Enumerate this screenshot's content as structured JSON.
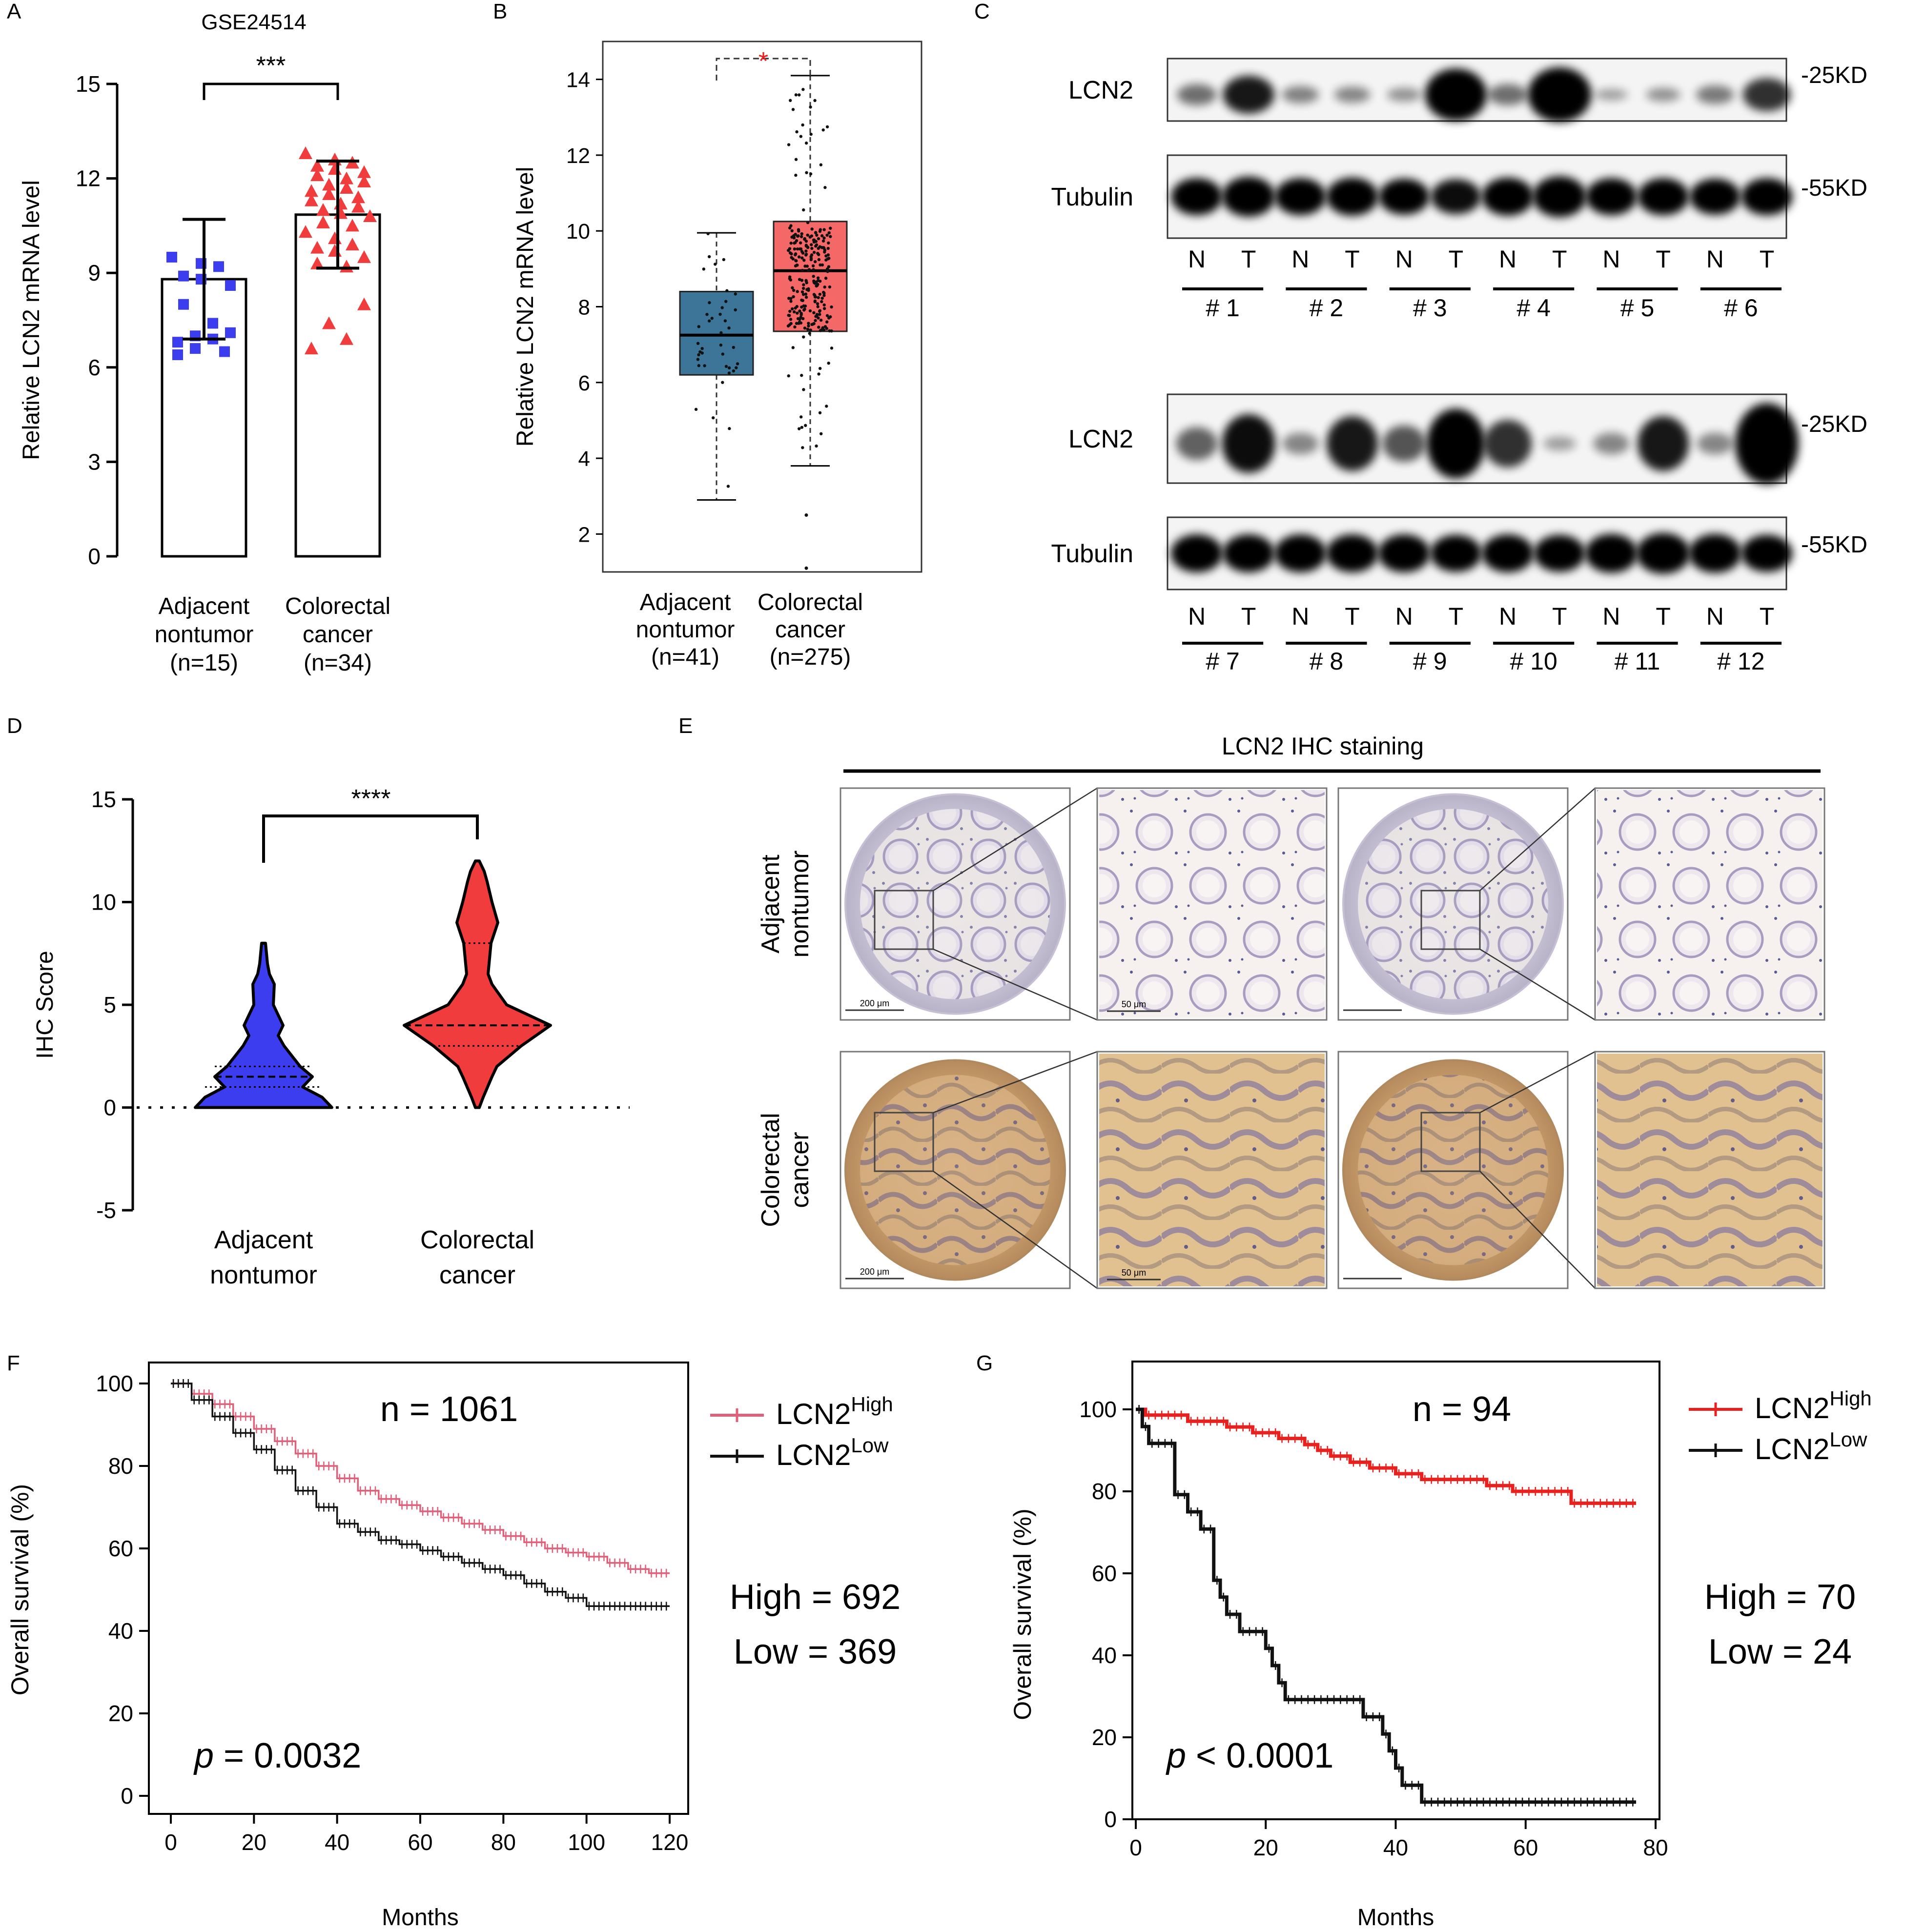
{
  "colors": {
    "blue": "#3d3df0",
    "red": "#f03c3c",
    "box_blue": "#3c7598",
    "box_red": "#f56868",
    "black": "#000000",
    "pink": "#e0607a",
    "km_red": "#e8201e"
  },
  "panel_labels": [
    "A",
    "B",
    "C",
    "D",
    "E",
    "F",
    "G"
  ],
  "chart_data": [
    {
      "id": "A",
      "type": "bar",
      "title": "GSE24514",
      "ylabel": "Relative LCN2 mRNA level",
      "ylim": [
        0,
        15
      ],
      "yticks": [
        "0",
        "3",
        "6",
        "9",
        "12",
        "15"
      ],
      "categories": [
        "Adjacent nontumor (n=15)",
        "Colorectal cancer (n=34)"
      ],
      "category_lines": [
        [
          "Adjacent",
          "nontumor",
          "(n=15)"
        ],
        [
          "Colorectal",
          "cancer",
          "(n=34)"
        ]
      ],
      "values": [
        8.8,
        10.85
      ],
      "sd": [
        1.9,
        1.7
      ],
      "significance": "***",
      "points": [
        [
          9.5,
          9.3,
          9.2,
          8.9,
          8.8,
          8.6,
          8.0,
          7.4,
          7.1,
          7.0,
          6.9,
          6.8,
          6.6,
          6.5,
          6.4
        ],
        [
          12.8,
          12.6,
          12.5,
          12.4,
          12.3,
          12.2,
          12.1,
          12.0,
          11.9,
          11.8,
          11.7,
          11.6,
          11.5,
          11.4,
          11.3,
          11.2,
          11.1,
          11.0,
          10.9,
          10.8,
          10.6,
          10.5,
          10.3,
          10.1,
          9.9,
          9.8,
          9.7,
          9.5,
          9.3,
          9.2,
          8.0,
          7.4,
          6.9,
          6.6
        ]
      ]
    },
    {
      "id": "B",
      "type": "box",
      "ylabel": "Relative LCN2 mRNA level",
      "ylim": [
        1,
        15
      ],
      "yticks": [
        "2",
        "4",
        "6",
        "8",
        "10",
        "12",
        "14"
      ],
      "categories": [
        "Adjacent nontumor (n=41)",
        "Colorectal cancer (n=275)"
      ],
      "category_lines": [
        [
          "Adjacent",
          "nontumor",
          "(n=41)"
        ],
        [
          "Colorectal",
          "cancer",
          "(n=275)"
        ]
      ],
      "boxes": [
        {
          "min": 2.9,
          "q1": 6.2,
          "median": 7.25,
          "q3": 8.4,
          "max": 9.95,
          "n": 41
        },
        {
          "min": 3.8,
          "q1": 7.35,
          "median": 8.95,
          "q3": 10.25,
          "max": 14.1,
          "n": 275
        }
      ],
      "outliers": [
        [],
        [
          2.5,
          1.1
        ]
      ],
      "significance": "*"
    },
    {
      "id": "D",
      "type": "violin",
      "ylabel": "IHC Score",
      "ylim": [
        -5,
        15
      ],
      "yticks": [
        "-5",
        "0",
        "5",
        "10",
        "15"
      ],
      "categories": [
        "Adjacent nontumor",
        "Colorectal cancer"
      ],
      "category_lines": [
        [
          "Adjacent",
          "nontumor"
        ],
        [
          "Colorectal",
          "cancer"
        ]
      ],
      "quartiles": [
        [
          1,
          1.5,
          2
        ],
        [
          3,
          4,
          8
        ]
      ],
      "range": [
        [
          0,
          8
        ],
        [
          0,
          12
        ]
      ],
      "significance": "****"
    },
    {
      "id": "F",
      "type": "line",
      "subtype": "kaplan-meier",
      "xlabel": "Months",
      "ylabel": "Overall survival (%)",
      "xlim": [
        0,
        120
      ],
      "ylim": [
        0,
        100
      ],
      "xticks": [
        "0",
        "20",
        "40",
        "60",
        "80",
        "100",
        "120"
      ],
      "yticks": [
        "0",
        "20",
        "40",
        "60",
        "80",
        "100"
      ],
      "n_text": "n = 1061",
      "high_text": "High = 692",
      "low_text": "Low = 369",
      "p_label": "p",
      "p_value": "= 0.0032",
      "series": [
        {
          "name": "LCN2",
          "sup": "High",
          "x": [
            0,
            5,
            10,
            15,
            20,
            25,
            30,
            35,
            40,
            45,
            50,
            55,
            60,
            65,
            70,
            75,
            80,
            85,
            90,
            95,
            100,
            105,
            110,
            115,
            120
          ],
          "y": [
            100,
            97.5,
            95,
            92,
            89,
            86,
            83,
            80,
            77,
            74,
            72,
            70.5,
            69,
            67.5,
            66,
            64.5,
            63,
            61.5,
            60,
            59,
            58,
            56.5,
            55,
            54,
            54
          ]
        },
        {
          "name": "LCN2",
          "sup": "Low",
          "x": [
            0,
            5,
            10,
            15,
            20,
            25,
            30,
            35,
            40,
            45,
            50,
            55,
            60,
            65,
            70,
            75,
            80,
            85,
            90,
            95,
            100,
            105,
            110,
            115,
            120
          ],
          "y": [
            100,
            96,
            92,
            88,
            84,
            79,
            74,
            70,
            66,
            64,
            62,
            61,
            59.5,
            58,
            56.5,
            55,
            53.5,
            51.5,
            49.5,
            48,
            46,
            46,
            46,
            46,
            46
          ]
        }
      ]
    },
    {
      "id": "G",
      "type": "line",
      "subtype": "kaplan-meier",
      "xlabel": "Months",
      "ylabel": "Overall survival (%)",
      "xlim": [
        0,
        80
      ],
      "ylim": [
        0,
        100
      ],
      "xticks": [
        "0",
        "20",
        "40",
        "60",
        "80"
      ],
      "yticks": [
        "0",
        "20",
        "40",
        "60",
        "80",
        "100"
      ],
      "n_text": "n = 94",
      "high_text": "High = 70",
      "low_text": "Low = 24",
      "p_label": "p",
      "p_value": "< 0.0001",
      "series": [
        {
          "name": "LCN2",
          "sup": "High",
          "x": [
            0,
            1.5,
            8,
            14,
            18,
            22,
            26,
            28,
            30,
            33,
            36,
            40,
            44,
            48,
            54,
            58,
            62,
            67,
            77
          ],
          "y": [
            100,
            98.6,
            97.1,
            95.7,
            94.3,
            92.9,
            91.4,
            90,
            88.6,
            87.1,
            85.7,
            84.3,
            82.9,
            82.9,
            81.4,
            80,
            80,
            77.1,
            77.1
          ]
        },
        {
          "name": "LCN2",
          "sup": "Low",
          "x": [
            0,
            1,
            2,
            6,
            8,
            10,
            12,
            13,
            14,
            16,
            20,
            21,
            22,
            23,
            35,
            38,
            39,
            40,
            41,
            42,
            44,
            77
          ],
          "y": [
            100,
            95.8,
            91.7,
            79.2,
            75,
            70.8,
            58.3,
            54.2,
            50,
            45.8,
            41.7,
            37.5,
            33.3,
            29.2,
            25,
            20.8,
            16.7,
            12.5,
            8.3,
            8.3,
            4.2,
            4.2
          ]
        }
      ]
    }
  ],
  "panel_C": {
    "lcn2_label": "LCN2",
    "tubulin_label": "Tubulin",
    "kd_25": "-25KD",
    "kd_55": "-55KD",
    "lane_n": "N",
    "lane_t": "T",
    "samples_top": [
      "# 1",
      "# 2",
      "# 3",
      "# 4",
      "# 5",
      "# 6"
    ],
    "samples_bottom": [
      "# 7",
      "# 8",
      "# 9",
      "# 10",
      "# 11",
      "# 12"
    ],
    "lcn2_intensity_top": [
      0.3,
      0.65,
      0.22,
      0.2,
      0.15,
      0.95,
      0.3,
      1.0,
      0.1,
      0.15,
      0.25,
      0.55
    ],
    "lcn2_intensity_bottom": [
      0.35,
      0.7,
      0.2,
      0.65,
      0.4,
      0.85,
      0.55,
      0.1,
      0.2,
      0.65,
      0.2,
      1.0
    ],
    "tubulin_intensity_top": [
      0.8,
      0.95,
      0.8,
      0.85,
      0.75,
      0.7,
      0.85,
      1.0,
      0.8,
      0.8,
      0.75,
      0.8
    ],
    "tubulin_intensity_bottom": [
      0.85,
      0.85,
      0.85,
      0.85,
      0.85,
      0.8,
      0.85,
      0.8,
      0.9,
      1.0,
      0.9,
      0.8
    ]
  },
  "panel_E": {
    "header": "LCN2 IHC staining",
    "row_labels": [
      [
        "Adjacent",
        "nontumor"
      ],
      [
        "Colorectal",
        "cancer"
      ]
    ],
    "scale_200": "200 μm",
    "scale_50": "50 μm"
  }
}
